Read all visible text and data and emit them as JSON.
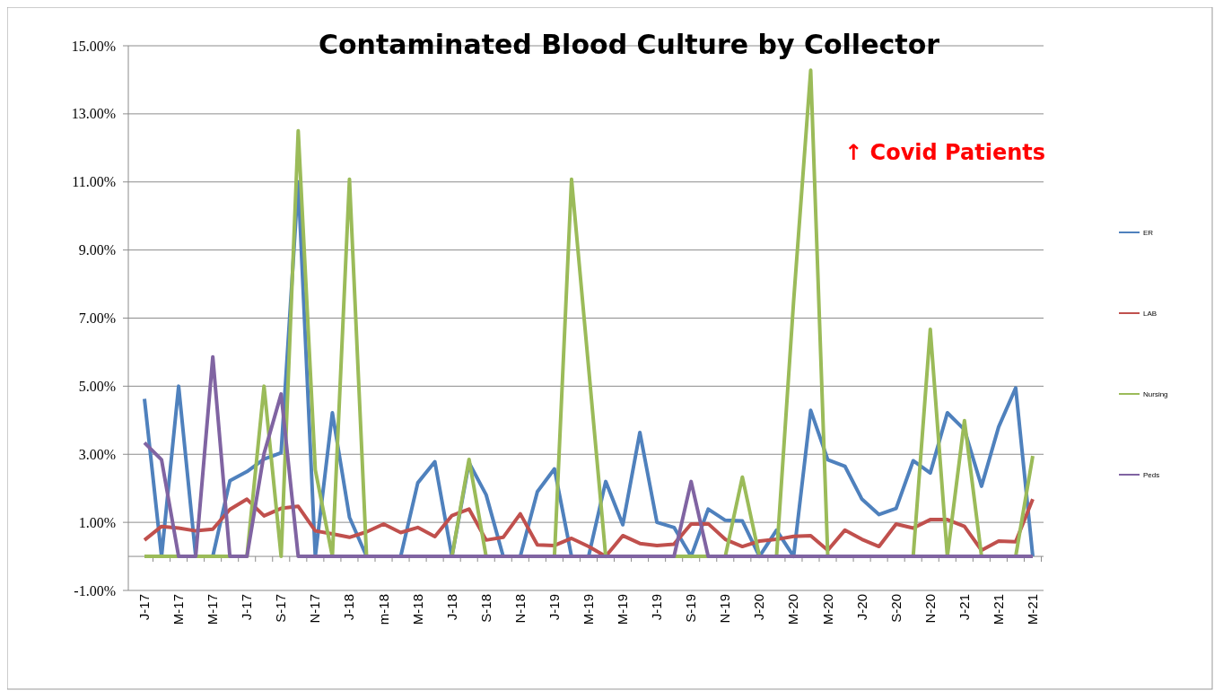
{
  "chart_data": {
    "type": "line",
    "title": "Contaminated Blood Culture by Collector",
    "categories": [
      "J-17",
      null,
      "M-17",
      null,
      "M-17",
      null,
      "J-17",
      null,
      "S-17",
      null,
      "N-17",
      null,
      "J-18",
      null,
      "m-18",
      null,
      "M-18",
      null,
      "J-18",
      null,
      "S-18",
      null,
      "N-18",
      null,
      "J-19",
      null,
      "M-19",
      null,
      "M-19",
      null,
      "J-19",
      null,
      "S-19",
      null,
      "N-19",
      null,
      "J-20",
      null,
      "M-20",
      null,
      "M-20",
      null,
      "J-20",
      null,
      "S-20",
      null,
      "N-20",
      null,
      "J-21",
      null,
      "M-21",
      null,
      "M-21"
    ],
    "series": [
      {
        "name": "ER",
        "color": "#4f81bd",
        "values": [
          4.63,
          0,
          5.0,
          0,
          0,
          2.22,
          2.49,
          2.86,
          3.04,
          11.0,
          0,
          4.22,
          1.15,
          0,
          0,
          0,
          2.16,
          2.78,
          0,
          2.75,
          1.81,
          0,
          0,
          1.9,
          2.57,
          0,
          0,
          2.2,
          0.93,
          3.64,
          1.0,
          0.85,
          0,
          1.39,
          1.06,
          1.04,
          0,
          0.77,
          0,
          4.29,
          2.84,
          2.65,
          1.68,
          1.23,
          1.41,
          2.81,
          2.45,
          4.22,
          3.72,
          2.06,
          3.8,
          4.95,
          0
        ]
      },
      {
        "name": "LAB",
        "color": "#c0504d",
        "values": [
          0.48,
          0.88,
          0.83,
          0.75,
          0.8,
          1.38,
          1.68,
          1.19,
          1.41,
          1.47,
          0.75,
          0.66,
          0.56,
          0.72,
          0.95,
          0.7,
          0.85,
          0.58,
          1.2,
          1.39,
          0.48,
          0.56,
          1.25,
          0.34,
          0.32,
          0.53,
          0.29,
          0,
          0.61,
          0.38,
          0.32,
          0.36,
          0.95,
          0.96,
          0.5,
          0.29,
          0.45,
          0.5,
          0.59,
          0.61,
          0.18,
          0.77,
          0.5,
          0.29,
          0.95,
          0.83,
          1.08,
          1.08,
          0.88,
          0.18,
          0.45,
          0.43,
          1.68
        ]
      },
      {
        "name": "Nursing",
        "color": "#9bbb59",
        "values": [
          0,
          0,
          0,
          0,
          0,
          0,
          0,
          5.0,
          0,
          12.5,
          2.54,
          0,
          11.08,
          0,
          0,
          0,
          0,
          0,
          0,
          2.85,
          0,
          0,
          0,
          0,
          0,
          11.08,
          5.54,
          0,
          0,
          0,
          0,
          0,
          0,
          0,
          0,
          2.33,
          0,
          0,
          7.5,
          14.28,
          0,
          0,
          0,
          0,
          0,
          0,
          6.67,
          0,
          3.99,
          0,
          0,
          0,
          2.95
        ]
      },
      {
        "name": "Peds",
        "color": "#8064a2",
        "values": [
          3.34,
          2.84,
          0,
          0,
          5.86,
          0,
          0,
          3.02,
          4.77,
          0,
          0,
          0,
          0,
          0,
          0,
          0,
          0,
          0,
          0,
          0,
          0,
          0,
          0,
          0,
          0,
          0,
          0,
          0,
          0,
          0,
          0,
          0,
          2.2,
          0,
          0,
          0,
          0,
          0,
          0,
          0,
          0,
          0,
          0,
          0,
          0,
          0,
          0,
          0,
          0,
          0,
          0,
          0,
          0
        ]
      }
    ],
    "ylim": [
      -1,
      15
    ],
    "yticks": [
      {
        "value": -1,
        "label": "-1.00%"
      },
      {
        "value": 1,
        "label": "1.00%"
      },
      {
        "value": 3,
        "label": "3.00%"
      },
      {
        "value": 5,
        "label": "5.00%"
      },
      {
        "value": 7,
        "label": "7.00%"
      },
      {
        "value": 9,
        "label": "9.00%"
      },
      {
        "value": 11,
        "label": "11.00%"
      },
      {
        "value": 13,
        "label": "13.00%"
      },
      {
        "value": 15,
        "label": "15.00%"
      }
    ],
    "grid": "y",
    "legend": "right",
    "marker": "none",
    "line_style": "solid",
    "annotations": [
      "↑ Covid Patients"
    ]
  }
}
